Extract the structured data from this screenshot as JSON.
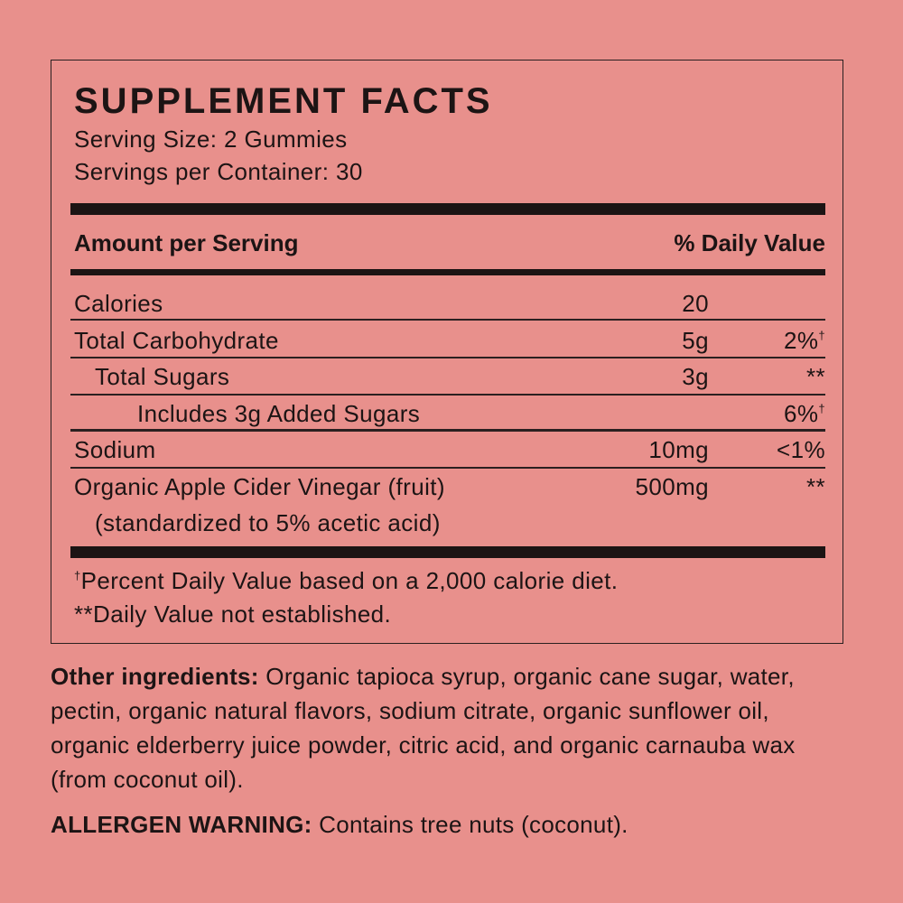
{
  "title": "SUPPLEMENT FACTS",
  "serving_size": "Serving Size: 2 Gummies",
  "servings_per_container": "Servings per Container: 30",
  "header": {
    "amount": "Amount per Serving",
    "daily_value": "% Daily Value"
  },
  "rows": [
    {
      "name": "Calories",
      "amount": "20",
      "dv": "",
      "dv_mark": ""
    },
    {
      "name": "Total Carbohydrate",
      "amount": "5g",
      "dv": "2%",
      "dv_mark": "†"
    },
    {
      "name": "Total Sugars",
      "amount": "3g",
      "dv": "**",
      "dv_mark": ""
    },
    {
      "name": "Includes 3g Added Sugars",
      "amount": "",
      "dv": "6%",
      "dv_mark": "†"
    },
    {
      "name": "Sodium",
      "amount": "10mg",
      "dv": "<1%",
      "dv_mark": ""
    },
    {
      "name": "Organic Apple Cider Vinegar (fruit)",
      "amount": "500mg",
      "dv": "**",
      "dv_mark": "",
      "note": "(standardized to 5% acetic acid)"
    }
  ],
  "footnotes": {
    "dagger_mark": "†",
    "dagger": "Percent Daily Value based on a 2,000 calorie diet.",
    "stars": "**Daily Value not established."
  },
  "other_ingredients": {
    "label": "Other ingredients:",
    "text": " Organic tapioca syrup, organic cane sugar, water, pectin, organic natural flavors, sodium citrate, organic sunflower oil, organic elderberry juice powder, citric acid, and organic carnauba wax (from coconut oil)."
  },
  "allergen": {
    "label": "ALLERGEN WARNING:",
    "text": " Contains tree nuts (coconut)."
  },
  "colors": {
    "background": "#E8908C",
    "ink": "#1c1414"
  }
}
